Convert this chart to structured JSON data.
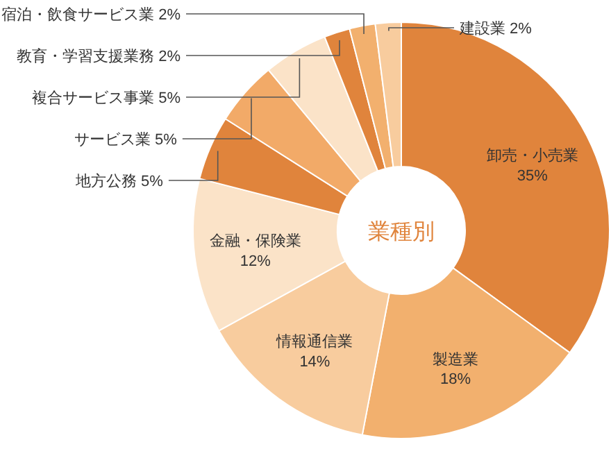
{
  "chart_data": {
    "type": "donut",
    "title": "業種別",
    "categories": [
      "卸売・小売業",
      "製造業",
      "情報通信業",
      "金融・保険業",
      "地方公務",
      "サービス業",
      "複合サービス事業",
      "教育・学習支援業務",
      "宿泊・飲食サービス業",
      "建設業"
    ],
    "values": [
      35,
      18,
      14,
      12,
      5,
      5,
      5,
      2,
      2,
      2
    ],
    "value_labels": [
      "35%",
      "18%",
      "14%",
      "12%",
      "5%",
      "5%",
      "5%",
      "2%",
      "2%",
      "2%"
    ],
    "colors": [
      "#e0843c",
      "#f2b06e",
      "#f8cc9e",
      "#fbe3c8",
      "#e0843c",
      "#f2aa68",
      "#fbe3c8",
      "#e0843c",
      "#f2b06e",
      "#f8cc9e"
    ]
  }
}
